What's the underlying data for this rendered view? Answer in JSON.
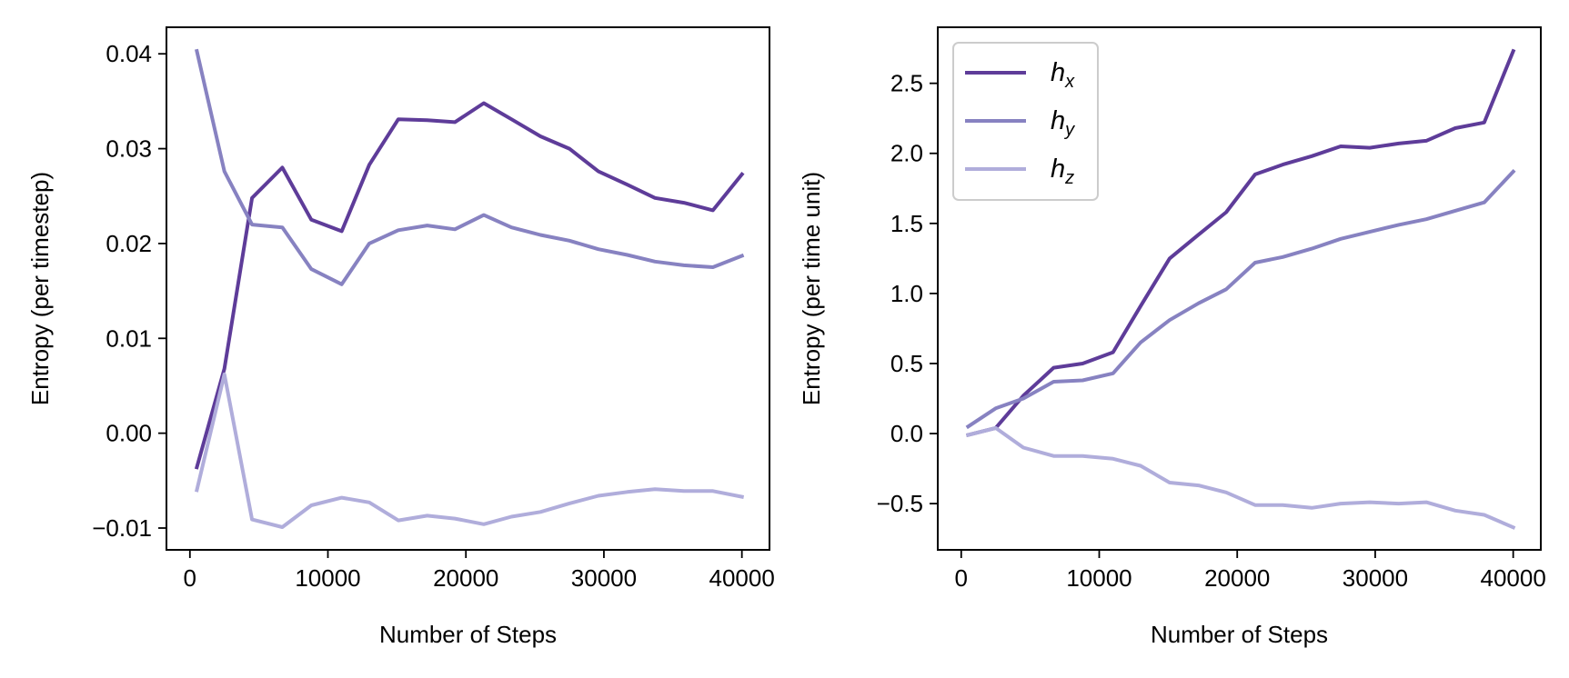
{
  "chart_data": [
    {
      "type": "line",
      "xlabel": "Number of Steps",
      "ylabel": "Entropy (per timestep)",
      "xlim": [
        -1700,
        42000
      ],
      "ylim": [
        -0.0123,
        0.0428
      ],
      "xticks": [
        0,
        10000,
        20000,
        30000,
        40000
      ],
      "xtick_labels": [
        "0",
        "10000",
        "20000",
        "30000",
        "40000"
      ],
      "yticks": [
        -0.01,
        0.0,
        0.01,
        0.02,
        0.03,
        0.04
      ],
      "ytick_labels": [
        "−0.01",
        "0.00",
        "0.01",
        "0.02",
        "0.03",
        "0.04"
      ],
      "grid": false,
      "legend": null,
      "x": [
        500,
        2500,
        4500,
        6700,
        8800,
        11000,
        13000,
        15100,
        17200,
        19200,
        21300,
        23300,
        25400,
        27500,
        29600,
        31700,
        33700,
        35800,
        37900,
        40000
      ],
      "series": [
        {
          "label": "h",
          "sub": "x",
          "color": "#5e3c99",
          "values": [
            -0.0036,
            0.0068,
            0.0248,
            0.028,
            0.0225,
            0.0213,
            0.0283,
            0.0331,
            0.033,
            0.0328,
            0.0348,
            0.0331,
            0.0313,
            0.03,
            0.0276,
            0.0262,
            0.0248,
            0.0243,
            0.0235,
            0.0273
          ]
        },
        {
          "label": "h",
          "sub": "y",
          "color": "#8782c1",
          "values": [
            0.0403,
            0.0276,
            0.022,
            0.0217,
            0.0173,
            0.0157,
            0.02,
            0.0214,
            0.0219,
            0.0215,
            0.023,
            0.0217,
            0.0209,
            0.0203,
            0.0194,
            0.0188,
            0.0181,
            0.0177,
            0.0175,
            0.0187
          ]
        },
        {
          "label": "h",
          "sub": "z",
          "color": "#b0addb",
          "values": [
            -0.006,
            0.0062,
            -0.0091,
            -0.0099,
            -0.0076,
            -0.0068,
            -0.0073,
            -0.0092,
            -0.0087,
            -0.009,
            -0.0096,
            -0.0088,
            -0.0083,
            -0.0074,
            -0.0066,
            -0.0062,
            -0.0059,
            -0.0061,
            -0.0061,
            -0.0067
          ]
        }
      ]
    },
    {
      "type": "line",
      "xlabel": "Number of Steps",
      "ylabel": "Entropy (per time unit)",
      "xlim": [
        -1700,
        42000
      ],
      "ylim": [
        -0.83,
        2.9
      ],
      "xticks": [
        0,
        10000,
        20000,
        30000,
        40000
      ],
      "xtick_labels": [
        "0",
        "10000",
        "20000",
        "30000",
        "40000"
      ],
      "yticks": [
        -0.5,
        0.0,
        0.5,
        1.0,
        1.5,
        2.0,
        2.5
      ],
      "ytick_labels": [
        "−0.5",
        "0.0",
        "0.5",
        "1.0",
        "1.5",
        "2.0",
        "2.5"
      ],
      "grid": false,
      "legend": "top-left",
      "x": [
        500,
        2500,
        4500,
        6700,
        8800,
        11000,
        13000,
        15100,
        17200,
        19200,
        21300,
        23300,
        25400,
        27500,
        29600,
        31700,
        33700,
        35800,
        37900,
        40000
      ],
      "series": [
        {
          "label": "h",
          "sub": "x",
          "color": "#5e3c99",
          "values": [
            -0.01,
            0.04,
            0.27,
            0.47,
            0.5,
            0.58,
            0.91,
            1.25,
            1.42,
            1.58,
            1.85,
            1.92,
            1.98,
            2.05,
            2.04,
            2.07,
            2.09,
            2.18,
            2.22,
            2.73
          ]
        },
        {
          "label": "h",
          "sub": "y",
          "color": "#8782c1",
          "values": [
            0.05,
            0.18,
            0.25,
            0.37,
            0.38,
            0.43,
            0.65,
            0.81,
            0.93,
            1.03,
            1.22,
            1.26,
            1.32,
            1.39,
            1.44,
            1.49,
            1.53,
            1.59,
            1.65,
            1.87
          ]
        },
        {
          "label": "h",
          "sub": "z",
          "color": "#b0addb",
          "values": [
            -0.01,
            0.04,
            -0.1,
            -0.16,
            -0.16,
            -0.18,
            -0.23,
            -0.35,
            -0.37,
            -0.42,
            -0.51,
            -0.51,
            -0.53,
            -0.5,
            -0.49,
            -0.5,
            -0.49,
            -0.55,
            -0.58,
            -0.67
          ]
        }
      ]
    }
  ]
}
